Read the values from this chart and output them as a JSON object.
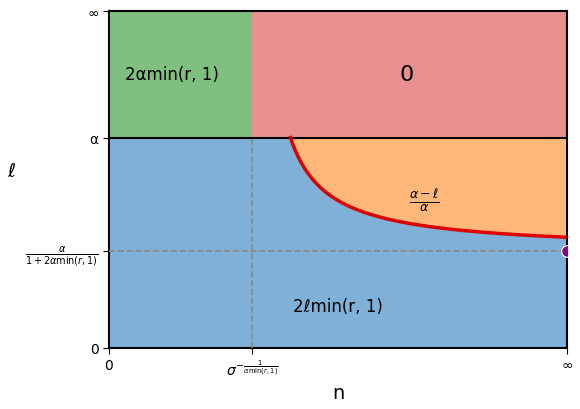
{
  "xlim": [
    0,
    8
  ],
  "ylim": [
    0,
    8
  ],
  "xlabel": "n",
  "ylabel": "ℓ",
  "alpha_val": 5.0,
  "n_vert": 2.5,
  "l_horiz": 2.3,
  "curve_k": 1.8,
  "colors": {
    "green": "#7fbf7f",
    "pink": "#e89090",
    "orange": "#ffb87a",
    "blue": "#7fb0d8"
  },
  "region_labels": {
    "green_text": "2αmin(r, 1)",
    "pink_text": "0",
    "orange_text": "$\\frac{\\alpha - \\ell}{\\alpha}$",
    "blue_text": "2ℓmin(r, 1)"
  },
  "tick_labels": {
    "x_zero": "0",
    "x_inf": "∞",
    "x_vert": "$\\sigma^{-\\frac{1}{\\alpha\\min(r,1)}}$",
    "y_zero": "0",
    "y_inf": "∞",
    "y_alpha": "α",
    "y_horiz": "$\\frac{\\alpha}{1+2\\alpha\\min(r,1)}$"
  },
  "curve_color": "#dd0000",
  "curve_lw": 2.5,
  "dashed_color": "#888888",
  "dot_color": "#880088",
  "dot_size": 70,
  "hline_color": "#000000",
  "hline_lw": 1.5,
  "figsize": [
    5.8,
    4.1
  ],
  "dpi": 100
}
